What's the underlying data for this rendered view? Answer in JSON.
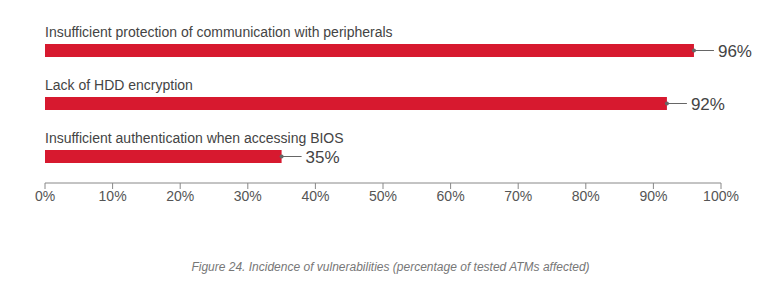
{
  "chart_data": {
    "type": "bar",
    "orientation": "horizontal",
    "title": "Figure 24. Incidence of vulnerabilities (percentage of tested ATMs affected)",
    "categories": [
      "Insufficient protection of communication with peripherals",
      "Lack of HDD encryption",
      "Insufficient authentication when accessing BIOS"
    ],
    "values": [
      96,
      92,
      35
    ],
    "value_labels": [
      "96%",
      "92%",
      "35%"
    ],
    "data_labels": true,
    "color": "#d7192f",
    "xlim": [
      0,
      100
    ],
    "xticks": [
      {
        "value": 0,
        "label": "0%"
      },
      {
        "value": 10,
        "label": "10%"
      },
      {
        "value": 20,
        "label": "20%"
      },
      {
        "value": 30,
        "label": "30%"
      },
      {
        "value": 40,
        "label": "40%"
      },
      {
        "value": 50,
        "label": "50%"
      },
      {
        "value": 60,
        "label": "60%"
      },
      {
        "value": 70,
        "label": "70%"
      },
      {
        "value": 80,
        "label": "80%"
      },
      {
        "value": 90,
        "label": "90%"
      },
      {
        "value": 100,
        "label": "100%"
      }
    ],
    "grid": false
  }
}
